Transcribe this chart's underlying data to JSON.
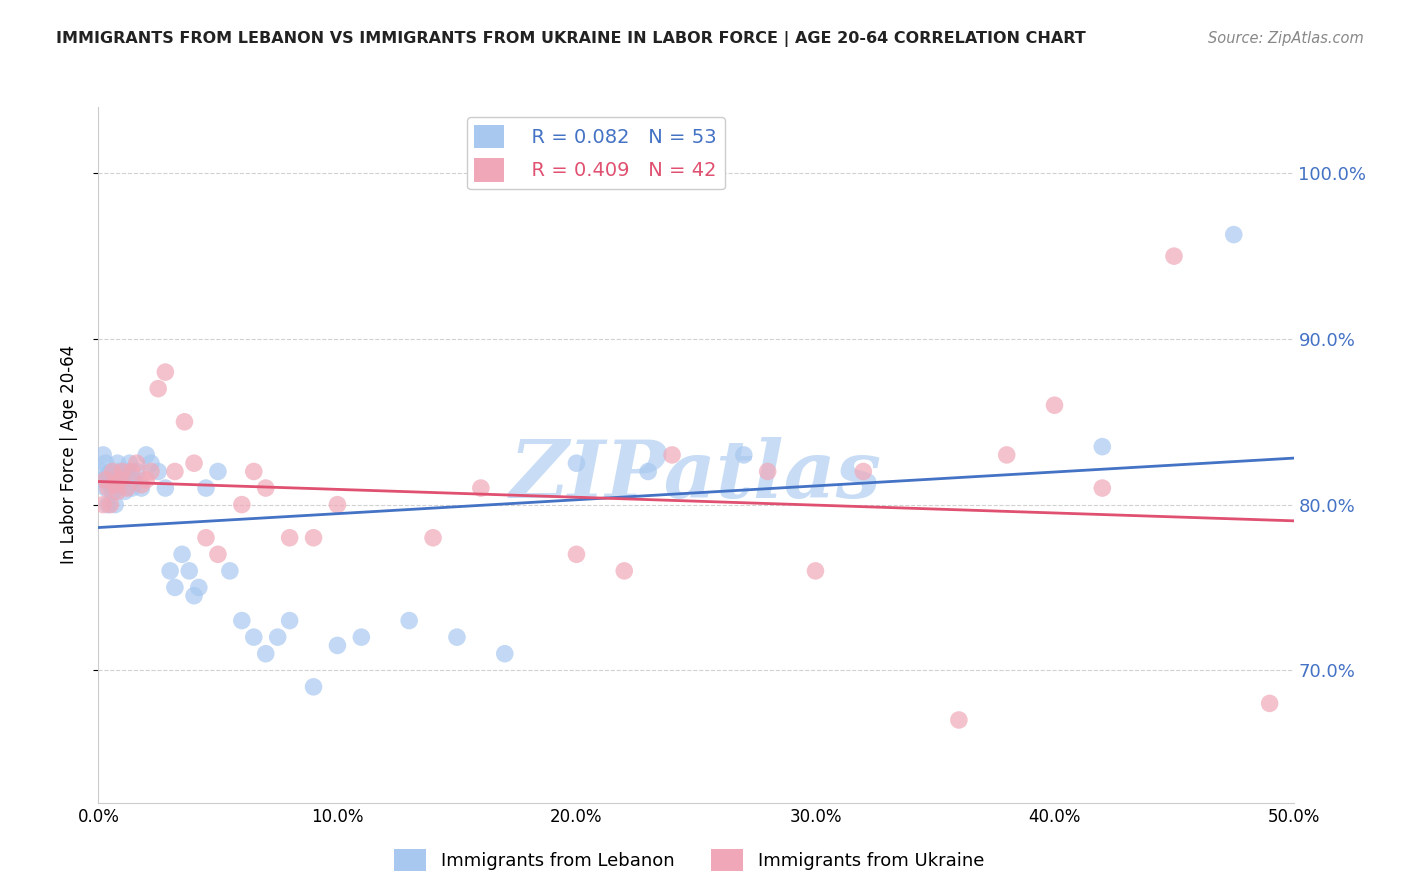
{
  "title": "IMMIGRANTS FROM LEBANON VS IMMIGRANTS FROM UKRAINE IN LABOR FORCE | AGE 20-64 CORRELATION CHART",
  "source": "Source: ZipAtlas.com",
  "ylabel": "In Labor Force | Age 20-64",
  "xlim": [
    0.0,
    0.5
  ],
  "ylim": [
    0.62,
    1.04
  ],
  "yticks": [
    0.7,
    0.8,
    0.9,
    1.0
  ],
  "ytick_labels": [
    "70.0%",
    "80.0%",
    "90.0%",
    "100.0%"
  ],
  "xticks": [
    0.0,
    0.1,
    0.2,
    0.3,
    0.4,
    0.5
  ],
  "xtick_labels": [
    "0.0%",
    "10.0%",
    "20.0%",
    "30.0%",
    "40.0%",
    "50.0%"
  ],
  "lebanon_color": "#A8C8F0",
  "ukraine_color": "#F0A8B8",
  "lebanon_R": 0.082,
  "lebanon_N": 53,
  "ukraine_R": 0.409,
  "ukraine_N": 42,
  "watermark": "ZIPatlas",
  "watermark_color": "#C8DDF5",
  "lebanon_x": [
    0.001,
    0.002,
    0.002,
    0.003,
    0.003,
    0.004,
    0.004,
    0.005,
    0.005,
    0.006,
    0.006,
    0.007,
    0.007,
    0.008,
    0.008,
    0.009,
    0.01,
    0.011,
    0.012,
    0.013,
    0.014,
    0.015,
    0.016,
    0.018,
    0.02,
    0.022,
    0.025,
    0.028,
    0.03,
    0.032,
    0.035,
    0.038,
    0.04,
    0.042,
    0.045,
    0.05,
    0.055,
    0.06,
    0.065,
    0.07,
    0.075,
    0.08,
    0.09,
    0.1,
    0.11,
    0.13,
    0.15,
    0.17,
    0.2,
    0.23,
    0.27,
    0.42,
    0.475
  ],
  "lebanon_y": [
    0.82,
    0.83,
    0.815,
    0.825,
    0.81,
    0.818,
    0.8,
    0.82,
    0.812,
    0.808,
    0.815,
    0.8,
    0.818,
    0.825,
    0.81,
    0.82,
    0.815,
    0.808,
    0.82,
    0.825,
    0.81,
    0.815,
    0.82,
    0.81,
    0.83,
    0.825,
    0.82,
    0.81,
    0.76,
    0.75,
    0.77,
    0.76,
    0.745,
    0.75,
    0.81,
    0.82,
    0.76,
    0.73,
    0.72,
    0.71,
    0.72,
    0.73,
    0.69,
    0.715,
    0.72,
    0.73,
    0.72,
    0.71,
    0.825,
    0.82,
    0.83,
    0.835,
    0.963
  ],
  "ukraine_x": [
    0.002,
    0.003,
    0.004,
    0.005,
    0.006,
    0.007,
    0.008,
    0.009,
    0.01,
    0.012,
    0.014,
    0.016,
    0.018,
    0.02,
    0.022,
    0.025,
    0.028,
    0.032,
    0.036,
    0.04,
    0.045,
    0.05,
    0.06,
    0.065,
    0.07,
    0.08,
    0.09,
    0.1,
    0.14,
    0.16,
    0.2,
    0.22,
    0.24,
    0.28,
    0.3,
    0.32,
    0.36,
    0.38,
    0.4,
    0.42,
    0.45,
    0.49
  ],
  "ukraine_y": [
    0.8,
    0.815,
    0.81,
    0.8,
    0.82,
    0.812,
    0.808,
    0.815,
    0.82,
    0.81,
    0.82,
    0.825,
    0.812,
    0.815,
    0.82,
    0.87,
    0.88,
    0.82,
    0.85,
    0.825,
    0.78,
    0.77,
    0.8,
    0.82,
    0.81,
    0.78,
    0.78,
    0.8,
    0.78,
    0.81,
    0.77,
    0.76,
    0.83,
    0.82,
    0.76,
    0.82,
    0.67,
    0.83,
    0.86,
    0.81,
    0.95,
    0.68
  ],
  "line_color_lebanon": "#4472C4",
  "line_color_ukraine": "#E05070",
  "background_color": "#FFFFFF",
  "grid_color": "#CCCCCC"
}
